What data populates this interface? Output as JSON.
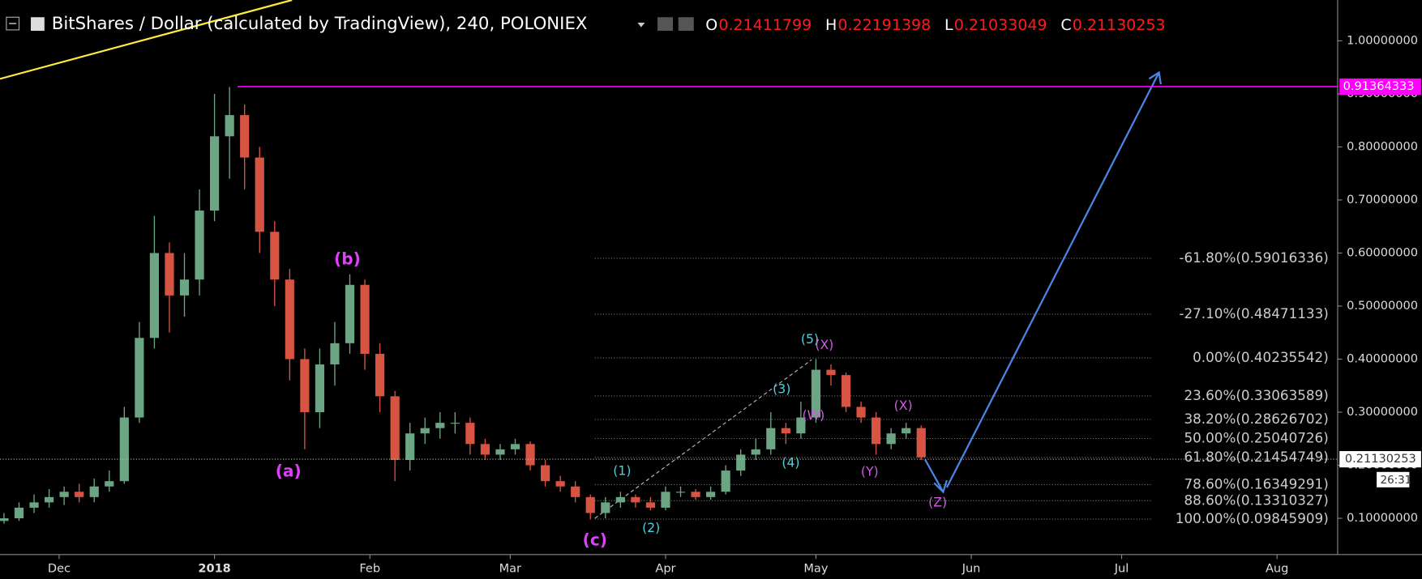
{
  "header": {
    "symbol": "BitShares / Dollar (calculated by TradingView), 240, POLONIEX",
    "ohlc": [
      {
        "key": "O",
        "value": 0.21411799
      },
      {
        "key": "H",
        "value": 0.22191398
      },
      {
        "key": "L",
        "value": 0.21033049
      },
      {
        "key": "C",
        "value": 0.21130253
      }
    ]
  },
  "chart_data": {
    "type": "candlestick",
    "up_color": "#6ba583",
    "down_color": "#d75442",
    "x": [
      -11,
      -8,
      -5,
      -2,
      1,
      4,
      7,
      10,
      13,
      16,
      19,
      22,
      25,
      28,
      31,
      34,
      37,
      40,
      43,
      46,
      49,
      52,
      55,
      58,
      61,
      64,
      67,
      70,
      73,
      76,
      79,
      82,
      85,
      88,
      91,
      94,
      97,
      100,
      103,
      106,
      109,
      112,
      115,
      118,
      121,
      124,
      127,
      130,
      133,
      136,
      139,
      142,
      145,
      148,
      151,
      154,
      157,
      160,
      163,
      166,
      169,
      172
    ],
    "open": [
      0.095,
      0.1,
      0.12,
      0.13,
      0.14,
      0.15,
      0.14,
      0.16,
      0.17,
      0.29,
      0.44,
      0.6,
      0.52,
      0.55,
      0.68,
      0.82,
      0.86,
      0.78,
      0.64,
      0.55,
      0.4,
      0.3,
      0.39,
      0.43,
      0.54,
      0.41,
      0.33,
      0.21,
      0.26,
      0.27,
      0.28,
      0.28,
      0.24,
      0.22,
      0.23,
      0.24,
      0.2,
      0.17,
      0.16,
      0.14,
      0.11,
      0.13,
      0.14,
      0.13,
      0.12,
      0.15,
      0.15,
      0.14,
      0.15,
      0.19,
      0.22,
      0.23,
      0.27,
      0.26,
      0.29,
      0.38,
      0.37,
      0.31,
      0.29,
      0.24,
      0.26,
      0.27
    ],
    "high": [
      0.11,
      0.13,
      0.145,
      0.155,
      0.16,
      0.165,
      0.175,
      0.19,
      0.31,
      0.47,
      0.67,
      0.62,
      0.6,
      0.72,
      0.9,
      0.913,
      0.88,
      0.8,
      0.66,
      0.57,
      0.42,
      0.42,
      0.47,
      0.56,
      0.55,
      0.43,
      0.34,
      0.28,
      0.29,
      0.3,
      0.3,
      0.29,
      0.25,
      0.24,
      0.25,
      0.245,
      0.21,
      0.18,
      0.17,
      0.145,
      0.14,
      0.15,
      0.145,
      0.14,
      0.16,
      0.16,
      0.155,
      0.16,
      0.2,
      0.23,
      0.25,
      0.3,
      0.28,
      0.32,
      0.4,
      0.39,
      0.375,
      0.32,
      0.3,
      0.27,
      0.28,
      0.275
    ],
    "low": [
      0.09,
      0.095,
      0.11,
      0.12,
      0.125,
      0.13,
      0.13,
      0.15,
      0.165,
      0.28,
      0.42,
      0.45,
      0.48,
      0.52,
      0.66,
      0.74,
      0.72,
      0.6,
      0.5,
      0.36,
      0.23,
      0.27,
      0.35,
      0.41,
      0.38,
      0.3,
      0.17,
      0.19,
      0.24,
      0.25,
      0.26,
      0.22,
      0.21,
      0.21,
      0.22,
      0.19,
      0.16,
      0.15,
      0.13,
      0.098,
      0.1,
      0.12,
      0.12,
      0.115,
      0.115,
      0.14,
      0.135,
      0.135,
      0.145,
      0.18,
      0.21,
      0.22,
      0.24,
      0.25,
      0.28,
      0.35,
      0.3,
      0.28,
      0.22,
      0.23,
      0.25,
      0.21
    ],
    "close": [
      0.1,
      0.12,
      0.13,
      0.14,
      0.15,
      0.14,
      0.16,
      0.17,
      0.29,
      0.44,
      0.6,
      0.52,
      0.55,
      0.68,
      0.82,
      0.86,
      0.78,
      0.64,
      0.55,
      0.4,
      0.3,
      0.39,
      0.43,
      0.54,
      0.41,
      0.33,
      0.21,
      0.26,
      0.27,
      0.28,
      0.28,
      0.24,
      0.22,
      0.23,
      0.24,
      0.2,
      0.17,
      0.16,
      0.14,
      0.11,
      0.13,
      0.14,
      0.13,
      0.12,
      0.15,
      0.15,
      0.14,
      0.15,
      0.19,
      0.22,
      0.23,
      0.27,
      0.26,
      0.29,
      0.38,
      0.37,
      0.31,
      0.29,
      0.24,
      0.26,
      0.27,
      0.215
    ],
    "xlim": [
      -11.8,
      255.1
    ],
    "ylim": [
      0.0317,
      1.0769
    ],
    "xticks": [
      {
        "value": 0,
        "label": "Dec"
      },
      {
        "value": 31,
        "label": "2018"
      },
      {
        "value": 62,
        "label": "Feb"
      },
      {
        "value": 90,
        "label": "Mar"
      },
      {
        "value": 121,
        "label": "Apr"
      },
      {
        "value": 151,
        "label": "May"
      },
      {
        "value": 182,
        "label": "Jun"
      },
      {
        "value": 212,
        "label": "Jul"
      },
      {
        "value": 243,
        "label": "Aug"
      }
    ],
    "yticks": [
      {
        "value": 0.1,
        "label": "0.10000000"
      },
      {
        "value": 0.2,
        "label": "0.20000000"
      },
      {
        "value": 0.3,
        "label": "0.30000000"
      },
      {
        "value": 0.4,
        "label": "0.40000000"
      },
      {
        "value": 0.5,
        "label": "0.50000000"
      },
      {
        "value": 0.6,
        "label": "0.60000000"
      },
      {
        "value": 0.7,
        "label": "0.70000000"
      },
      {
        "value": 0.8,
        "label": "0.80000000"
      },
      {
        "value": 0.9,
        "label": "0.90000000"
      },
      {
        "value": 1.0,
        "label": "1.00000000"
      }
    ],
    "resistance": {
      "value": 0.91364333,
      "color": "#ff00ff"
    },
    "last_price": {
      "value": 0.21130253,
      "countdown": "26:31"
    },
    "fib_levels": [
      {
        "value": 0.59016336,
        "label": "-61.80%(0.59016336)"
      },
      {
        "value": 0.48471133,
        "label": "-27.10%(0.48471133)"
      },
      {
        "value": 0.40235542,
        "label": "0.00%(0.40235542)"
      },
      {
        "value": 0.33063589,
        "label": "23.60%(0.33063589)"
      },
      {
        "value": 0.28626702,
        "label": "38.20%(0.28626702)"
      },
      {
        "value": 0.25040726,
        "label": "50.00%(0.25040726)"
      },
      {
        "value": 0.21454749,
        "label": "61.80%(0.21454749)"
      },
      {
        "value": 0.16349291,
        "label": "78.60%(0.16349291)"
      },
      {
        "value": 0.13310327,
        "label": "88.60%(0.13310327)"
      },
      {
        "value": 0.09845909,
        "label": "100.00%(0.09845909)"
      }
    ],
    "wave_labels": [
      {
        "text": "(a)",
        "color": "#e040fb"
      },
      {
        "text": "(b)",
        "color": "#e040fb"
      },
      {
        "text": "(c)",
        "color": "#e040fb"
      },
      {
        "text": "(1)",
        "color": "#4dd0e1"
      },
      {
        "text": "(2)",
        "color": "#4dd0e1"
      },
      {
        "text": "(3)",
        "color": "#4dd0e1"
      },
      {
        "text": "(4)",
        "color": "#4dd0e1"
      },
      {
        "text": "(5)",
        "color": "#4dd0e1"
      },
      {
        "text": "(X)",
        "color": "#d05ce3"
      },
      {
        "text": "(W)",
        "color": "#d05ce3"
      },
      {
        "text": "(X)",
        "color": "#d05ce3"
      },
      {
        "text": "(Y)",
        "color": "#d05ce3"
      },
      {
        "text": "(Z)",
        "color": "#d05ce3"
      }
    ]
  }
}
